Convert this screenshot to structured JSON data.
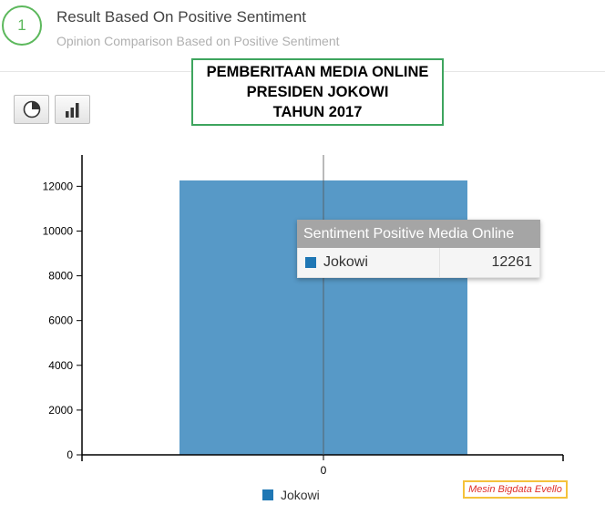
{
  "step": {
    "number": "1",
    "title": "Result Based On Positive Sentiment",
    "subtitle": "Opinion Comparison Based on Positive Sentiment"
  },
  "overlay": {
    "lines": [
      "PEMBERITAAN MEDIA ONLINE",
      "PRESIDEN JOKOWI",
      "TAHUN 2017"
    ]
  },
  "toolbar": {
    "buttons": [
      {
        "icon": "pie-chart-icon"
      },
      {
        "icon": "bar-chart-icon"
      }
    ]
  },
  "tooltip": {
    "header": "Sentiment Positive Media Online",
    "label": "Jokowi",
    "value": "12261"
  },
  "watermark": "Mesin Bigdata Evello",
  "colors": {
    "bar": "#5799c7",
    "legend": "#1f77b4",
    "accent_green": "#5cb85c"
  },
  "chart_data": {
    "type": "bar",
    "categories": [
      "0"
    ],
    "series": [
      {
        "name": "Jokowi",
        "values": [
          12261
        ]
      }
    ],
    "title": "",
    "xlabel": "",
    "ylabel": "",
    "ylim": [
      0,
      13400
    ],
    "yticks": [
      0,
      2000,
      4000,
      6000,
      8000,
      10000,
      12000
    ],
    "legend": "bottom"
  }
}
